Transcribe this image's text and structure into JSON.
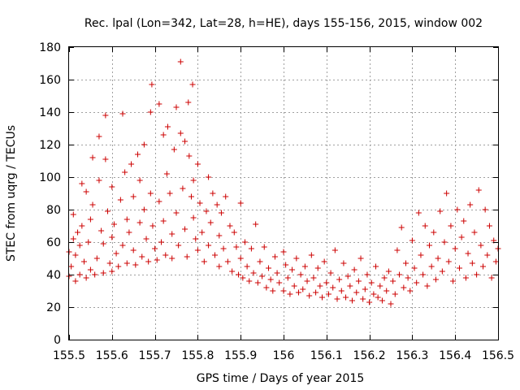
{
  "chart_data": {
    "type": "scatter",
    "title": "Rec. lpal (Lon=342, Lat=28, h=HE), days 155-156, 2015, window 002",
    "xlabel": "GPS time / Days of year 2015",
    "ylabel": "STEC from uqrg / TECUs",
    "xlim": [
      155.5,
      156.5
    ],
    "ylim": [
      0,
      180
    ],
    "xticks": [
      155.5,
      155.6,
      155.7,
      155.8,
      155.9,
      156,
      156.1,
      156.2,
      156.3,
      156.4,
      156.5
    ],
    "xtick_labels": [
      "155.5",
      "155.6",
      "155.7",
      "155.8",
      "155.9",
      "156",
      "156.1",
      "156.2",
      "156.3",
      "156.4",
      "156.5"
    ],
    "yticks": [
      0,
      20,
      40,
      60,
      80,
      100,
      120,
      140,
      160,
      180
    ],
    "ytick_labels": [
      "0",
      "20",
      "40",
      "60",
      "80",
      "100",
      "120",
      "140",
      "160",
      "180"
    ],
    "grid": true,
    "marker": "plus",
    "color": "#cc0000",
    "points": [
      [
        155.5,
        39
      ],
      [
        155.5,
        54
      ],
      [
        155.505,
        45
      ],
      [
        155.51,
        62
      ],
      [
        155.51,
        77
      ],
      [
        155.515,
        36
      ],
      [
        155.515,
        52
      ],
      [
        155.52,
        66
      ],
      [
        155.525,
        40
      ],
      [
        155.525,
        58
      ],
      [
        155.53,
        96
      ],
      [
        155.53,
        70
      ],
      [
        155.535,
        48
      ],
      [
        155.54,
        38
      ],
      [
        155.54,
        91
      ],
      [
        155.545,
        60
      ],
      [
        155.55,
        43
      ],
      [
        155.55,
        74
      ],
      [
        155.555,
        112
      ],
      [
        155.555,
        83
      ],
      [
        155.56,
        40
      ],
      [
        155.565,
        50
      ],
      [
        155.57,
        125
      ],
      [
        155.57,
        98
      ],
      [
        155.575,
        67
      ],
      [
        155.58,
        41
      ],
      [
        155.58,
        59
      ],
      [
        155.585,
        138
      ],
      [
        155.585,
        111
      ],
      [
        155.59,
        79
      ],
      [
        155.595,
        47
      ],
      [
        155.6,
        42
      ],
      [
        155.6,
        94
      ],
      [
        155.6,
        63
      ],
      [
        155.605,
        71
      ],
      [
        155.61,
        53
      ],
      [
        155.615,
        45
      ],
      [
        155.62,
        86
      ],
      [
        155.625,
        139
      ],
      [
        155.625,
        58
      ],
      [
        155.63,
        103
      ],
      [
        155.635,
        74
      ],
      [
        155.635,
        47
      ],
      [
        155.64,
        66
      ],
      [
        155.645,
        108
      ],
      [
        155.65,
        88
      ],
      [
        155.65,
        55
      ],
      [
        155.655,
        46
      ],
      [
        155.66,
        114
      ],
      [
        155.665,
        72
      ],
      [
        155.665,
        98
      ],
      [
        155.67,
        51
      ],
      [
        155.675,
        120
      ],
      [
        155.675,
        80
      ],
      [
        155.68,
        62
      ],
      [
        155.685,
        48
      ],
      [
        155.69,
        140
      ],
      [
        155.69,
        90
      ],
      [
        155.693,
        157
      ],
      [
        155.695,
        70
      ],
      [
        155.7,
        56
      ],
      [
        155.705,
        49
      ],
      [
        155.71,
        145
      ],
      [
        155.71,
        85
      ],
      [
        155.715,
        60
      ],
      [
        155.72,
        126
      ],
      [
        155.72,
        73
      ],
      [
        155.725,
        52
      ],
      [
        155.728,
        102
      ],
      [
        155.73,
        131
      ],
      [
        155.735,
        90
      ],
      [
        155.74,
        65
      ],
      [
        155.74,
        50
      ],
      [
        155.745,
        117
      ],
      [
        155.75,
        143
      ],
      [
        155.75,
        78
      ],
      [
        155.755,
        58
      ],
      [
        155.76,
        171
      ],
      [
        155.76,
        127
      ],
      [
        155.765,
        93
      ],
      [
        155.77,
        122
      ],
      [
        155.77,
        68
      ],
      [
        155.775,
        51
      ],
      [
        155.778,
        146
      ],
      [
        155.78,
        113
      ],
      [
        155.785,
        88
      ],
      [
        155.788,
        157
      ],
      [
        155.79,
        98
      ],
      [
        155.79,
        75
      ],
      [
        155.795,
        62
      ],
      [
        155.8,
        108
      ],
      [
        155.8,
        55
      ],
      [
        155.805,
        84
      ],
      [
        155.81,
        66
      ],
      [
        155.815,
        48
      ],
      [
        155.82,
        79
      ],
      [
        155.825,
        100
      ],
      [
        155.825,
        58
      ],
      [
        155.83,
        72
      ],
      [
        155.835,
        90
      ],
      [
        155.84,
        52
      ],
      [
        155.845,
        83
      ],
      [
        155.85,
        64
      ],
      [
        155.85,
        45
      ],
      [
        155.855,
        78
      ],
      [
        155.86,
        56
      ],
      [
        155.865,
        88
      ],
      [
        155.87,
        48
      ],
      [
        155.875,
        70
      ],
      [
        155.88,
        42
      ],
      [
        155.885,
        66
      ],
      [
        155.89,
        57
      ],
      [
        155.895,
        40
      ],
      [
        155.9,
        84
      ],
      [
        155.9,
        50
      ],
      [
        155.905,
        38
      ],
      [
        155.91,
        60
      ],
      [
        155.915,
        45
      ],
      [
        155.92,
        36
      ],
      [
        155.925,
        56
      ],
      [
        155.93,
        41
      ],
      [
        155.935,
        71
      ],
      [
        155.94,
        35
      ],
      [
        155.945,
        48
      ],
      [
        155.95,
        39
      ],
      [
        155.955,
        57
      ],
      [
        155.96,
        32
      ],
      [
        155.965,
        44
      ],
      [
        155.97,
        37
      ],
      [
        155.975,
        30
      ],
      [
        155.98,
        51
      ],
      [
        155.985,
        41
      ],
      [
        155.99,
        35
      ],
      [
        156.0,
        54
      ],
      [
        156.0,
        30
      ],
      [
        156.005,
        46
      ],
      [
        156.01,
        38
      ],
      [
        156.015,
        28
      ],
      [
        156.02,
        43
      ],
      [
        156.025,
        33
      ],
      [
        156.03,
        50
      ],
      [
        156.035,
        29
      ],
      [
        156.04,
        40
      ],
      [
        156.045,
        31
      ],
      [
        156.05,
        45
      ],
      [
        156.055,
        36
      ],
      [
        156.06,
        27
      ],
      [
        156.065,
        52
      ],
      [
        156.07,
        38
      ],
      [
        156.075,
        29
      ],
      [
        156.08,
        44
      ],
      [
        156.085,
        33
      ],
      [
        156.09,
        26
      ],
      [
        156.095,
        48
      ],
      [
        156.1,
        35
      ],
      [
        156.105,
        28
      ],
      [
        156.11,
        41
      ],
      [
        156.115,
        32
      ],
      [
        156.12,
        55
      ],
      [
        156.125,
        25
      ],
      [
        156.13,
        37
      ],
      [
        156.135,
        30
      ],
      [
        156.14,
        47
      ],
      [
        156.145,
        26
      ],
      [
        156.15,
        39
      ],
      [
        156.155,
        33
      ],
      [
        156.16,
        24
      ],
      [
        156.165,
        43
      ],
      [
        156.17,
        29
      ],
      [
        156.175,
        36
      ],
      [
        156.18,
        50
      ],
      [
        156.185,
        25
      ],
      [
        156.19,
        31
      ],
      [
        156.195,
        40
      ],
      [
        156.2,
        23
      ],
      [
        156.205,
        35
      ],
      [
        156.21,
        28
      ],
      [
        156.215,
        45
      ],
      [
        156.22,
        26
      ],
      [
        156.225,
        33
      ],
      [
        156.23,
        24
      ],
      [
        156.235,
        38
      ],
      [
        156.24,
        30
      ],
      [
        156.245,
        42
      ],
      [
        156.25,
        22
      ],
      [
        156.255,
        36
      ],
      [
        156.26,
        28
      ],
      [
        156.265,
        55
      ],
      [
        156.27,
        40
      ],
      [
        156.275,
        69
      ],
      [
        156.28,
        32
      ],
      [
        156.285,
        47
      ],
      [
        156.29,
        38
      ],
      [
        156.295,
        30
      ],
      [
        156.3,
        61
      ],
      [
        156.305,
        44
      ],
      [
        156.31,
        35
      ],
      [
        156.315,
        78
      ],
      [
        156.32,
        52
      ],
      [
        156.325,
        40
      ],
      [
        156.33,
        70
      ],
      [
        156.335,
        33
      ],
      [
        156.34,
        58
      ],
      [
        156.345,
        45
      ],
      [
        156.35,
        66
      ],
      [
        156.355,
        37
      ],
      [
        156.36,
        50
      ],
      [
        156.365,
        79
      ],
      [
        156.37,
        42
      ],
      [
        156.375,
        60
      ],
      [
        156.38,
        90
      ],
      [
        156.385,
        48
      ],
      [
        156.39,
        70
      ],
      [
        156.395,
        36
      ],
      [
        156.4,
        56
      ],
      [
        156.405,
        80
      ],
      [
        156.41,
        44
      ],
      [
        156.415,
        63
      ],
      [
        156.42,
        73
      ],
      [
        156.425,
        38
      ],
      [
        156.43,
        53
      ],
      [
        156.435,
        83
      ],
      [
        156.44,
        47
      ],
      [
        156.445,
        66
      ],
      [
        156.45,
        40
      ],
      [
        156.455,
        92
      ],
      [
        156.46,
        58
      ],
      [
        156.465,
        45
      ],
      [
        156.47,
        80
      ],
      [
        156.475,
        52
      ],
      [
        156.48,
        70
      ],
      [
        156.485,
        38
      ],
      [
        156.49,
        61
      ],
      [
        156.495,
        48
      ],
      [
        156.5,
        56
      ]
    ]
  }
}
